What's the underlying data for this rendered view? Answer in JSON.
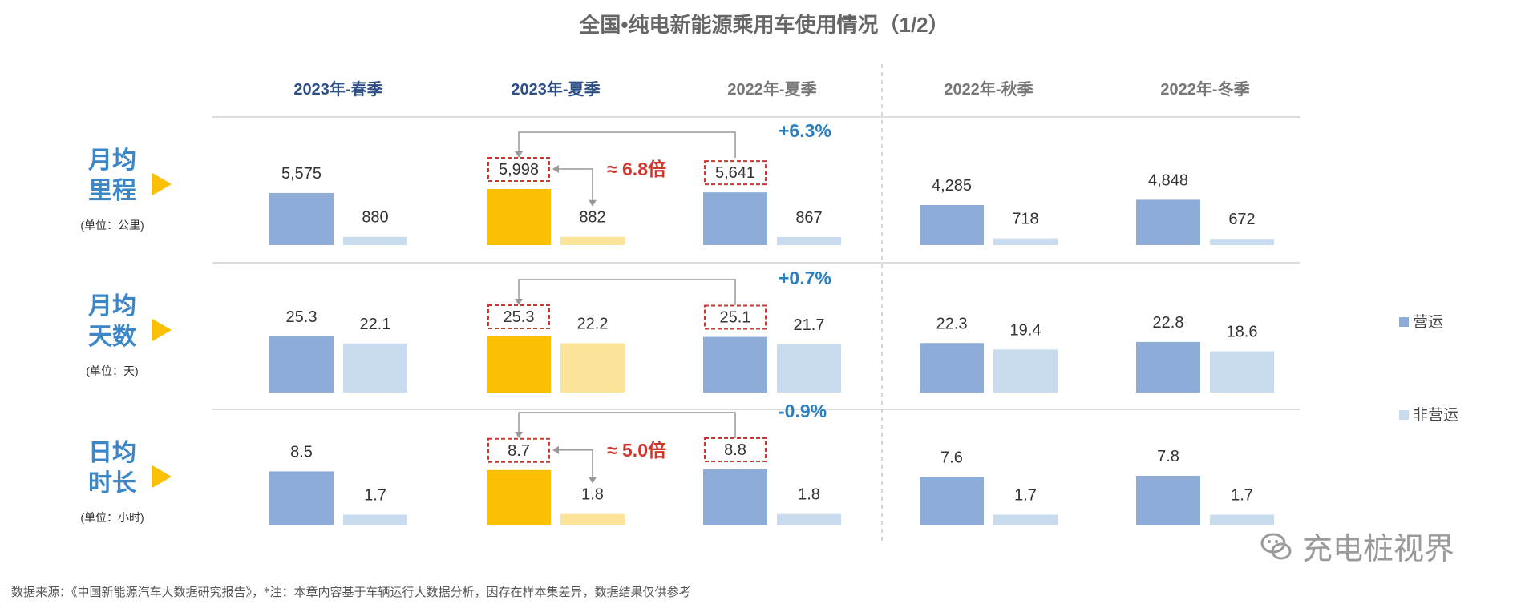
{
  "chart_data": {
    "type": "bar",
    "title": "全国•纯电新能源乘用车使用情况（1/2）",
    "periods": [
      "2023年-春季",
      "2023年-夏季",
      "2022年-夏季",
      "2022年-秋季",
      "2022年-冬季"
    ],
    "series": [
      {
        "name": "营运",
        "color": "#8eacd8"
      },
      {
        "name": "非营运",
        "color": "#c9dcef"
      }
    ],
    "highlight_colors": {
      "operating": "#fbc002",
      "non_operating": "#fbe39a"
    },
    "metrics": [
      {
        "label_lines": [
          "月均",
          "里程"
        ],
        "unit": "(单位：公里)",
        "operating": [
          5575,
          5998,
          5641,
          4285,
          4848
        ],
        "operating_labels": [
          "5,575",
          "5,998",
          "5,641",
          "4,285",
          "4,848"
        ],
        "non_operating": [
          880,
          882,
          867,
          718,
          672
        ],
        "non_operating_labels": [
          "880",
          "882",
          "867",
          "718",
          "672"
        ],
        "change": "+6.3%",
        "ratio": "≈  6.8倍"
      },
      {
        "label_lines": [
          "月均",
          "天数"
        ],
        "unit": "(单位：天)",
        "operating": [
          25.3,
          25.3,
          25.1,
          22.3,
          22.8
        ],
        "operating_labels": [
          "25.3",
          "25.3",
          "25.1",
          "22.3",
          "22.8"
        ],
        "non_operating": [
          22.1,
          22.2,
          21.7,
          19.4,
          18.6
        ],
        "non_operating_labels": [
          "22.1",
          "22.2",
          "21.7",
          "19.4",
          "18.6"
        ],
        "change": "+0.7%",
        "ratio": ""
      },
      {
        "label_lines": [
          "日均",
          "时长"
        ],
        "unit": "(单位：小时)",
        "operating": [
          8.5,
          8.7,
          8.8,
          7.6,
          7.8
        ],
        "operating_labels": [
          "8.5",
          "8.7",
          "8.8",
          "7.6",
          "7.8"
        ],
        "non_operating": [
          1.7,
          1.8,
          1.8,
          1.7,
          1.7
        ],
        "non_operating_labels": [
          "1.7",
          "1.8",
          "1.8",
          "1.7",
          "1.7"
        ],
        "change": "-0.9%",
        "ratio": "≈  5.0倍"
      }
    ]
  },
  "footnote": "数据来源：《中国新能源汽车大数据研究报告》，*注：本章内容基于车辆运行大数据分析，因存在样本集差异，数据结果仅供参考",
  "brand": "充电桩视界"
}
